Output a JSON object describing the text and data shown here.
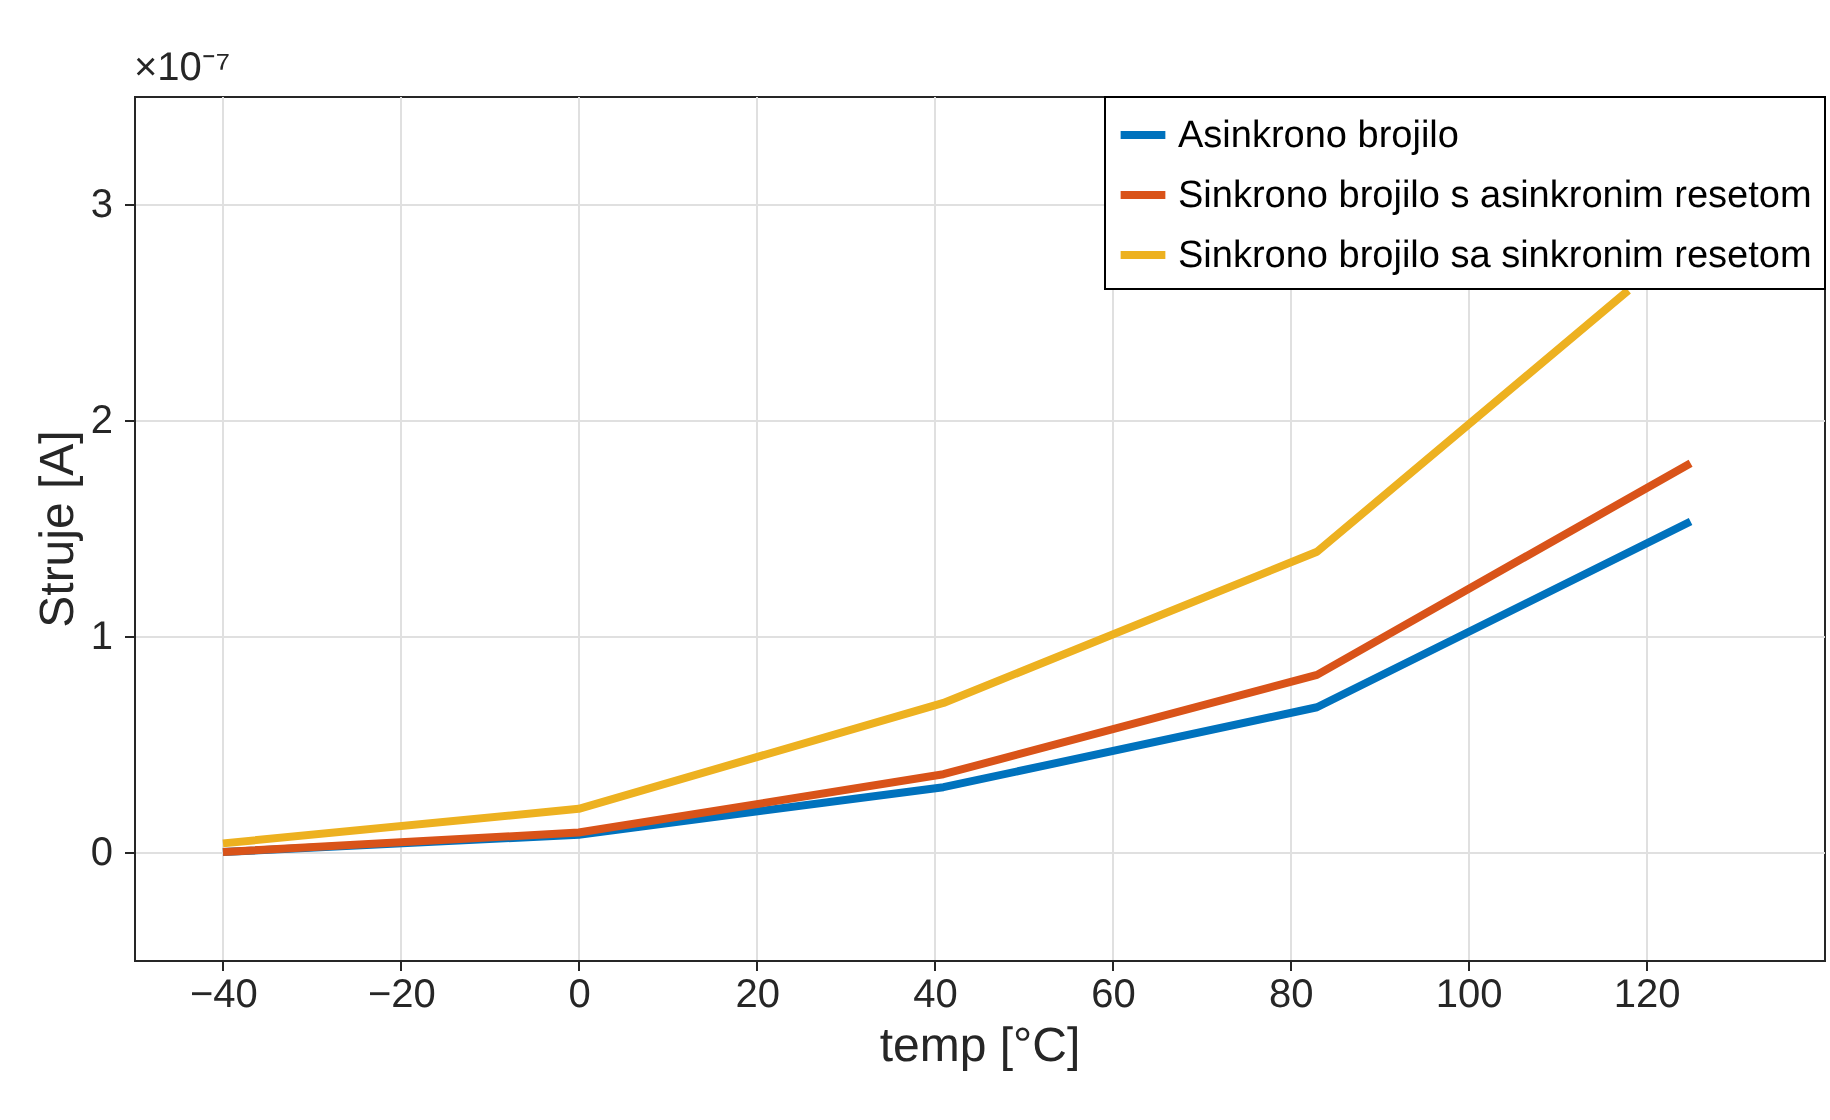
{
  "chart_data": {
    "type": "line",
    "xlabel": "temp [°C]",
    "ylabel": "Struje [A]",
    "annotations": [
      "×10⁻⁷"
    ],
    "x": [
      -40,
      0,
      41,
      83,
      125
    ],
    "series": [
      {
        "name": "Asinkrono brojilo",
        "color": "#0072bd",
        "values": [
          0,
          0.08,
          0.3,
          0.67,
          1.53
        ]
      },
      {
        "name": "Sinkrono brojilo s asinkronim resetom",
        "color": "#d95319",
        "values": [
          0,
          0.09,
          0.36,
          0.82,
          1.8
        ]
      },
      {
        "name": "Sinkrono brojilo sa sinkronim resetom",
        "color": "#edb120",
        "x": [
          -40,
          0,
          41,
          83,
          118
        ],
        "values": [
          0.04,
          0.2,
          0.69,
          1.39,
          2.6
        ]
      }
    ],
    "xlim": [
      -50,
      140
    ],
    "xticks": [
      -40,
      -20,
      0,
      20,
      40,
      60,
      80,
      100,
      120
    ],
    "ylim": [
      -0.5,
      3.5
    ],
    "yticks": [
      0,
      1,
      2,
      3
    ],
    "grid": true,
    "legend": "top right",
    "marker": "none",
    "line_style": "solid"
  }
}
